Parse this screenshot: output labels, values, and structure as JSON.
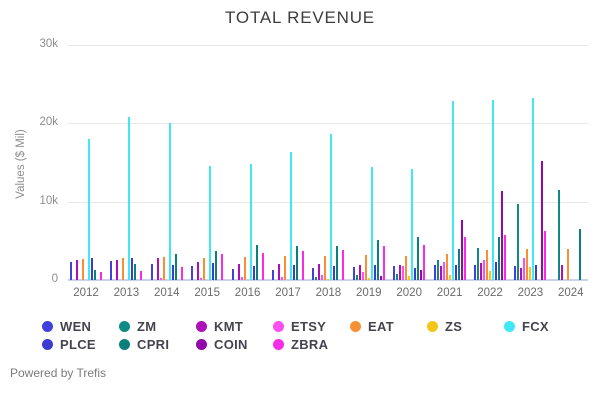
{
  "footer": "Powered by Trefis",
  "chart_data": {
    "type": "bar",
    "title": "TOTAL REVENUE",
    "xlabel": "",
    "ylabel": "Values ($ Mil)",
    "ylim": [
      0,
      30000
    ],
    "y_ticks": [
      "0",
      "10k",
      "20k",
      "30k"
    ],
    "grid": true,
    "legend_position": "bottom",
    "categories": [
      "2012",
      "2013",
      "2014",
      "2015",
      "2016",
      "2017",
      "2018",
      "2019",
      "2020",
      "2021",
      "2022",
      "2023",
      "2024"
    ],
    "series": [
      {
        "name": "WEN",
        "color": "#4040dd",
        "values": [
          2350,
          2480,
          2050,
          1800,
          1350,
          1220,
          1500,
          1650,
          1730,
          1900,
          1950,
          1750,
          0
        ]
      },
      {
        "name": "ZM",
        "color": "#0f8a84",
        "values": [
          0,
          0,
          0,
          0,
          0,
          0,
          330,
          620,
          800,
          2600,
          4050,
          9700,
          11500
        ]
      },
      {
        "name": "KMT",
        "color": "#ad0fb8",
        "values": [
          2560,
          2540,
          2840,
          2300,
          2100,
          2060,
          2100,
          1970,
          1890,
          1800,
          2200,
          1500,
          1900
        ]
      },
      {
        "name": "ETSY",
        "color": "#ff4ff2",
        "values": [
          0,
          0,
          200,
          280,
          380,
          440,
          600,
          1000,
          1750,
          2250,
          2550,
          2750,
          0
        ]
      },
      {
        "name": "EAT",
        "color": "#f79035",
        "values": [
          2650,
          2820,
          2900,
          2800,
          3000,
          3100,
          3050,
          3130,
          3080,
          3340,
          3820,
          4000,
          3900
        ]
      },
      {
        "name": "ZS",
        "color": "#f5c518",
        "values": [
          0,
          0,
          0,
          0,
          0,
          0,
          190,
          300,
          450,
          670,
          1090,
          1620,
          0
        ]
      },
      {
        "name": "FCX",
        "color": "#40e8f5",
        "values": [
          18000,
          20800,
          20000,
          14550,
          14830,
          16370,
          18620,
          14400,
          14200,
          22800,
          23000,
          23250,
          0
        ]
      },
      {
        "name": "PLCE",
        "color": "#3b3bd4",
        "values": [
          2770,
          2800,
          1900,
          2200,
          1800,
          1870,
          1850,
          1870,
          1520,
          1950,
          2350,
          1950,
          0
        ]
      },
      {
        "name": "CPRI",
        "color": "#0b7f7b",
        "values": [
          1280,
          2000,
          3300,
          3750,
          4440,
          4350,
          4350,
          5150,
          5550,
          3900,
          5520,
          0,
          6450
        ]
      },
      {
        "name": "COIN",
        "color": "#9208a8",
        "values": [
          0,
          0,
          0,
          0,
          0,
          0,
          0,
          530,
          1280,
          7650,
          11300,
          15250,
          0
        ]
      },
      {
        "name": "ZBRA",
        "color": "#f72ce8",
        "values": [
          1070,
          1100,
          1700,
          3300,
          3400,
          3720,
          3850,
          4400,
          4450,
          5550,
          5750,
          6200,
          0
        ]
      }
    ],
    "legend_rows": [
      [
        "WEN",
        "ZM",
        "KMT",
        "ETSY",
        "EAT",
        "ZS",
        "FCX"
      ],
      [
        "PLCE",
        "CPRI",
        "COIN",
        "ZBRA"
      ]
    ]
  }
}
